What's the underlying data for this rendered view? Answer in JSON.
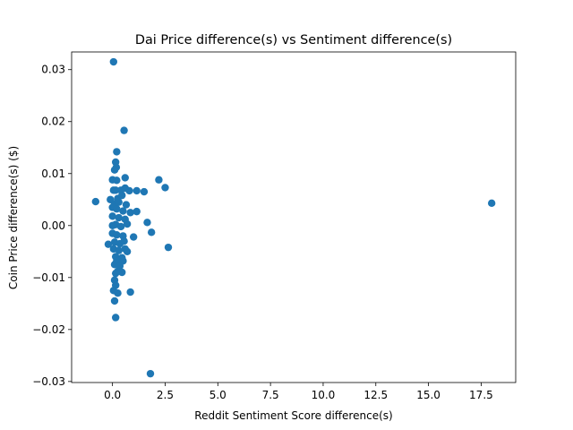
{
  "chart_data": {
    "type": "scatter",
    "title": "Dai Price difference(s) vs Sentiment difference(s)",
    "xlabel": "Reddit Sentiment Score difference(s)",
    "ylabel": "Coin Price difference(s) ($)",
    "xlim": [
      -1.94,
      19.14
    ],
    "ylim": [
      -0.0302,
      0.0334
    ],
    "x_ticks": [
      0,
      2.5,
      5,
      7.5,
      10,
      12.5,
      15,
      17.5
    ],
    "x_tick_labels": [
      "0.0",
      "2.5",
      "5.0",
      "7.5",
      "10.0",
      "12.5",
      "15.0",
      "17.5"
    ],
    "y_ticks": [
      -0.03,
      -0.02,
      -0.01,
      0,
      0.01,
      0.02,
      0.03
    ],
    "y_tick_labels": [
      "−0.03",
      "−0.02",
      "−0.01",
      "0.00",
      "0.01",
      "0.02",
      "0.03"
    ],
    "grid": false,
    "color": "#1f77b4",
    "series": [
      {
        "points": [
          [
            0.05,
            0.0315
          ],
          [
            0.55,
            0.0183
          ],
          [
            0.2,
            0.0142
          ],
          [
            0.15,
            0.0122
          ],
          [
            0.18,
            0.0112
          ],
          [
            0.1,
            0.0107
          ],
          [
            0.6,
            0.0092
          ],
          [
            0.0,
            0.0088
          ],
          [
            0.2,
            0.0087
          ],
          [
            2.2,
            0.0088
          ],
          [
            2.5,
            0.0073
          ],
          [
            0.05,
            0.0068
          ],
          [
            0.15,
            0.0068
          ],
          [
            0.4,
            0.0068
          ],
          [
            0.6,
            0.0072
          ],
          [
            0.8,
            0.0067
          ],
          [
            1.15,
            0.0067
          ],
          [
            1.5,
            0.0065
          ],
          [
            -0.1,
            0.005
          ],
          [
            0.25,
            0.0052
          ],
          [
            0.45,
            0.0058
          ],
          [
            -0.8,
            0.0046
          ],
          [
            0.1,
            0.0042
          ],
          [
            0.3,
            0.0045
          ],
          [
            0.65,
            0.004
          ],
          [
            0.0,
            0.0035
          ],
          [
            0.2,
            0.0032
          ],
          [
            0.5,
            0.0028
          ],
          [
            0.85,
            0.0025
          ],
          [
            1.15,
            0.0027
          ],
          [
            0.0,
            0.0018
          ],
          [
            0.3,
            0.0015
          ],
          [
            0.6,
            0.0012
          ],
          [
            1.65,
            0.0006
          ],
          [
            0.0,
            0.0
          ],
          [
            0.15,
            0.0002
          ],
          [
            0.4,
            -0.0002
          ],
          [
            0.7,
            0.0003
          ],
          [
            1.85,
            -0.0013
          ],
          [
            0.0,
            -0.0015
          ],
          [
            0.2,
            -0.0018
          ],
          [
            0.5,
            -0.002
          ],
          [
            1.0,
            -0.0022
          ],
          [
            -0.2,
            -0.0036
          ],
          [
            0.1,
            -0.0032
          ],
          [
            0.35,
            -0.0035
          ],
          [
            0.55,
            -0.003
          ],
          [
            2.65,
            -0.0042
          ],
          [
            0.05,
            -0.0045
          ],
          [
            0.3,
            -0.0048
          ],
          [
            0.6,
            -0.0045
          ],
          [
            0.7,
            -0.005
          ],
          [
            0.15,
            -0.006
          ],
          [
            0.45,
            -0.0062
          ],
          [
            0.2,
            -0.0068
          ],
          [
            0.5,
            -0.0068
          ],
          [
            0.1,
            -0.0075
          ],
          [
            0.35,
            -0.0078
          ],
          [
            0.25,
            -0.0088
          ],
          [
            0.45,
            -0.009
          ],
          [
            0.15,
            -0.0092
          ],
          [
            0.1,
            -0.0105
          ],
          [
            0.15,
            -0.0115
          ],
          [
            0.05,
            -0.0125
          ],
          [
            0.25,
            -0.013
          ],
          [
            0.85,
            -0.0128
          ],
          [
            0.1,
            -0.0145
          ],
          [
            0.15,
            -0.0177
          ],
          [
            1.8,
            -0.0285
          ],
          [
            18.0,
            0.0043
          ]
        ]
      }
    ]
  }
}
